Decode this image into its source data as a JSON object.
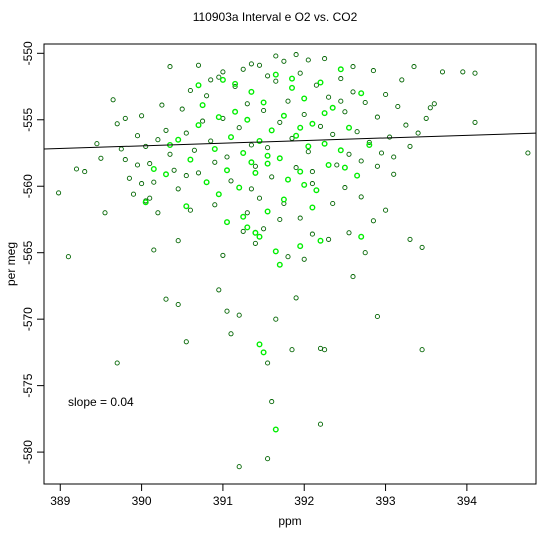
{
  "chart_data": {
    "type": "scatter",
    "title": "110903a   Interval e O2 vs. CO2",
    "xlabel": "ppm",
    "ylabel": "per meg",
    "xlim": [
      388.8,
      394.85
    ],
    "ylim": [
      -582.4,
      -549.3
    ],
    "xticks": [
      389,
      390,
      391,
      392,
      393,
      394
    ],
    "yticks": [
      -550,
      -555,
      -560,
      -565,
      -570,
      -575,
      -580
    ],
    "annotation": "slope =  0.04",
    "fit_line": {
      "slope": 0.04,
      "x": [
        388.8,
        394.85
      ],
      "y": [
        -557.2,
        -556.0
      ]
    },
    "colors": {
      "dark_series": "#006400",
      "light_series": "#00ee00",
      "fit": "#000000",
      "axis": "#000000"
    },
    "series": [
      {
        "color": "#006400",
        "points": [
          [
            388.98,
            -560.5
          ],
          [
            389.2,
            -558.7
          ],
          [
            389.3,
            -558.9
          ],
          [
            389.45,
            -556.8
          ],
          [
            389.5,
            -557.9
          ],
          [
            389.55,
            -562.0
          ],
          [
            389.65,
            -553.5
          ],
          [
            389.7,
            -555.3
          ],
          [
            389.75,
            -557.2
          ],
          [
            389.8,
            -558.0
          ],
          [
            389.85,
            -559.4
          ],
          [
            389.9,
            -560.6
          ],
          [
            389.95,
            -556.2
          ],
          [
            390.0,
            -554.7
          ],
          [
            390.05,
            -557.0
          ],
          [
            390.1,
            -558.3
          ],
          [
            390.15,
            -559.7
          ],
          [
            390.2,
            -556.5
          ],
          [
            390.25,
            -553.9
          ],
          [
            390.3,
            -555.8
          ],
          [
            390.35,
            -557.6
          ],
          [
            390.4,
            -558.8
          ],
          [
            390.45,
            -560.2
          ],
          [
            390.5,
            -554.2
          ],
          [
            390.55,
            -556.0
          ],
          [
            390.6,
            -552.8
          ],
          [
            390.65,
            -557.3
          ],
          [
            390.7,
            -559.0
          ],
          [
            390.75,
            -555.1
          ],
          [
            390.8,
            -553.2
          ],
          [
            390.85,
            -556.6
          ],
          [
            390.9,
            -558.2
          ],
          [
            390.95,
            -551.8
          ],
          [
            391.0,
            -554.9
          ],
          [
            391.05,
            -557.8
          ],
          [
            391.1,
            -559.6
          ],
          [
            391.15,
            -552.5
          ],
          [
            391.2,
            -555.6
          ],
          [
            391.25,
            -551.2
          ],
          [
            391.3,
            -553.8
          ],
          [
            391.35,
            -556.9
          ],
          [
            391.4,
            -558.5
          ],
          [
            391.45,
            -550.9
          ],
          [
            391.5,
            -554.3
          ],
          [
            391.55,
            -557.1
          ],
          [
            391.6,
            -559.3
          ],
          [
            391.65,
            -552.1
          ],
          [
            391.7,
            -555.2
          ],
          [
            391.75,
            -550.6
          ],
          [
            391.8,
            -553.6
          ],
          [
            391.85,
            -556.4
          ],
          [
            391.9,
            -558.6
          ],
          [
            391.95,
            -551.5
          ],
          [
            392.0,
            -554.6
          ],
          [
            392.05,
            -557.4
          ],
          [
            392.1,
            -559.8
          ],
          [
            392.15,
            -552.4
          ],
          [
            392.2,
            -555.5
          ],
          [
            392.25,
            -550.4
          ],
          [
            392.3,
            -553.3
          ],
          [
            392.35,
            -556.1
          ],
          [
            392.4,
            -558.4
          ],
          [
            392.45,
            -551.9
          ],
          [
            392.5,
            -554.4
          ],
          [
            392.55,
            -557.6
          ],
          [
            392.6,
            -552.9
          ],
          [
            392.65,
            -555.9
          ],
          [
            392.7,
            -558.1
          ],
          [
            392.75,
            -553.7
          ],
          [
            392.8,
            -556.7
          ],
          [
            392.85,
            -551.3
          ],
          [
            392.9,
            -554.8
          ],
          [
            392.95,
            -557.5
          ],
          [
            393.0,
            -553.1
          ],
          [
            393.05,
            -556.3
          ],
          [
            393.1,
            -559.1
          ],
          [
            393.15,
            -554.0
          ],
          [
            393.2,
            -552.0
          ],
          [
            393.25,
            -555.4
          ],
          [
            393.3,
            -557.0
          ],
          [
            393.4,
            -556.0
          ],
          [
            393.5,
            -554.9
          ],
          [
            393.6,
            -553.8
          ],
          [
            393.7,
            -551.4
          ],
          [
            393.95,
            -551.4
          ],
          [
            394.1,
            -551.5
          ],
          [
            394.1,
            -555.2
          ],
          [
            394.75,
            -557.5
          ],
          [
            390.45,
            -564.1
          ],
          [
            390.15,
            -564.8
          ],
          [
            389.1,
            -565.3
          ],
          [
            390.3,
            -568.5
          ],
          [
            390.45,
            -568.9
          ],
          [
            390.55,
            -571.7
          ],
          [
            389.7,
            -573.3
          ],
          [
            390.95,
            -567.8
          ],
          [
            391.05,
            -569.4
          ],
          [
            391.1,
            -571.1
          ],
          [
            391.2,
            -569.7
          ],
          [
            391.4,
            -564.3
          ],
          [
            391.55,
            -573.3
          ],
          [
            391.65,
            -570.0
          ],
          [
            391.85,
            -572.3
          ],
          [
            391.9,
            -568.4
          ],
          [
            391.8,
            -565.3
          ],
          [
            391.0,
            -565.2
          ],
          [
            391.6,
            -576.2
          ],
          [
            391.55,
            -580.5
          ],
          [
            391.2,
            -581.1
          ],
          [
            392.0,
            -565.5
          ],
          [
            392.1,
            -563.6
          ],
          [
            392.2,
            -572.2
          ],
          [
            392.25,
            -572.3
          ],
          [
            392.2,
            -577.9
          ],
          [
            392.55,
            -563.5
          ],
          [
            392.75,
            -565.0
          ],
          [
            392.6,
            -566.8
          ],
          [
            392.9,
            -569.8
          ],
          [
            393.0,
            -561.8
          ],
          [
            393.3,
            -564.0
          ],
          [
            393.45,
            -564.6
          ],
          [
            393.45,
            -572.3
          ],
          [
            392.3,
            -564.0
          ],
          [
            391.7,
            -562.5
          ],
          [
            391.3,
            -562.0
          ],
          [
            391.5,
            -563.2
          ],
          [
            391.95,
            -562.4
          ],
          [
            392.35,
            -561.3
          ],
          [
            392.5,
            -560.1
          ],
          [
            390.9,
            -561.4
          ],
          [
            390.6,
            -561.8
          ],
          [
            390.2,
            -562.0
          ],
          [
            390.1,
            -560.9
          ],
          [
            392.7,
            -560.8
          ],
          [
            391.35,
            -560.2
          ],
          [
            390.0,
            -559.8
          ],
          [
            389.8,
            -554.9
          ],
          [
            390.35,
            -551.0
          ],
          [
            390.7,
            -550.9
          ],
          [
            391.35,
            -550.8
          ],
          [
            391.65,
            -550.2
          ],
          [
            391.9,
            -550.1
          ],
          [
            392.05,
            -550.5
          ],
          [
            392.6,
            -551.0
          ],
          [
            393.35,
            -551.0
          ],
          [
            391.0,
            -551.4
          ],
          [
            390.85,
            -552.0
          ],
          [
            391.55,
            -551.7
          ],
          [
            392.45,
            -553.6
          ],
          [
            393.55,
            -554.1
          ],
          [
            393.1,
            -557.8
          ],
          [
            392.9,
            -558.5
          ],
          [
            390.05,
            -561.1
          ],
          [
            389.95,
            -558.4
          ],
          [
            390.55,
            -559.2
          ],
          [
            391.75,
            -561.3
          ],
          [
            392.85,
            -562.6
          ],
          [
            391.25,
            -563.4
          ],
          [
            392.1,
            -558.9
          ],
          [
            391.45,
            -560.9
          ]
        ]
      },
      {
        "color": "#00ee00",
        "points": [
          [
            390.05,
            -561.2
          ],
          [
            390.3,
            -559.1
          ],
          [
            390.45,
            -556.5
          ],
          [
            390.55,
            -561.5
          ],
          [
            390.6,
            -558.0
          ],
          [
            390.7,
            -555.4
          ],
          [
            390.75,
            -553.9
          ],
          [
            390.8,
            -559.7
          ],
          [
            390.9,
            -557.2
          ],
          [
            391.0,
            -552.0
          ],
          [
            391.05,
            -558.8
          ],
          [
            391.1,
            -556.3
          ],
          [
            391.15,
            -554.4
          ],
          [
            391.2,
            -560.1
          ],
          [
            391.25,
            -557.5
          ],
          [
            391.3,
            -555.0
          ],
          [
            391.35,
            -552.9
          ],
          [
            391.4,
            -559.0
          ],
          [
            391.45,
            -556.6
          ],
          [
            391.5,
            -553.7
          ],
          [
            391.55,
            -558.3
          ],
          [
            391.6,
            -555.8
          ],
          [
            391.65,
            -551.6
          ],
          [
            391.7,
            -557.9
          ],
          [
            391.75,
            -554.7
          ],
          [
            391.8,
            -559.5
          ],
          [
            391.85,
            -552.6
          ],
          [
            391.9,
            -556.2
          ],
          [
            391.95,
            -558.9
          ],
          [
            392.0,
            -553.4
          ],
          [
            392.05,
            -557.0
          ],
          [
            392.1,
            -555.3
          ],
          [
            392.15,
            -560.3
          ],
          [
            392.2,
            -552.2
          ],
          [
            392.25,
            -556.8
          ],
          [
            392.3,
            -558.4
          ],
          [
            392.35,
            -554.1
          ],
          [
            392.45,
            -557.3
          ],
          [
            392.55,
            -555.6
          ],
          [
            392.65,
            -559.2
          ],
          [
            392.7,
            -553.0
          ],
          [
            392.8,
            -556.9
          ],
          [
            390.95,
            -560.6
          ],
          [
            391.05,
            -562.7
          ],
          [
            391.25,
            -562.3
          ],
          [
            391.3,
            -563.1
          ],
          [
            391.4,
            -563.5
          ],
          [
            391.45,
            -563.8
          ],
          [
            391.55,
            -561.9
          ],
          [
            391.65,
            -564.9
          ],
          [
            391.7,
            -565.9
          ],
          [
            391.95,
            -564.5
          ],
          [
            392.2,
            -564.1
          ],
          [
            392.7,
            -563.8
          ],
          [
            391.45,
            -571.9
          ],
          [
            391.5,
            -572.5
          ],
          [
            391.65,
            -578.3
          ],
          [
            391.75,
            -561.0
          ],
          [
            392.1,
            -561.6
          ],
          [
            390.95,
            -554.8
          ],
          [
            391.15,
            -552.3
          ],
          [
            391.85,
            -551.9
          ],
          [
            392.45,
            -551.2
          ],
          [
            390.7,
            -552.4
          ],
          [
            390.35,
            -556.9
          ],
          [
            390.15,
            -558.7
          ],
          [
            391.55,
            -557.7
          ],
          [
            392.0,
            -559.9
          ],
          [
            391.35,
            -558.2
          ],
          [
            392.5,
            -558.6
          ],
          [
            391.95,
            -555.6
          ],
          [
            392.25,
            -554.5
          ]
        ]
      }
    ]
  }
}
